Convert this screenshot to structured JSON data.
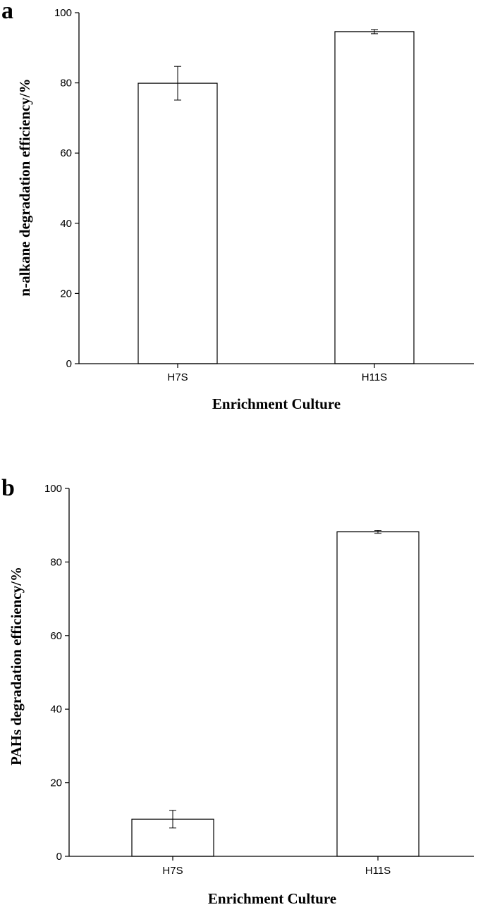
{
  "chart_data": [
    {
      "panel": "a",
      "type": "bar",
      "categories": [
        "H7S",
        "H11S"
      ],
      "values": [
        79.9,
        94.6
      ],
      "errors": [
        4.8,
        0.6
      ],
      "xlabel": "Enrichment Culture",
      "ylabel": "n-alkane degradation efficiency/%",
      "ylim": [
        0,
        100
      ],
      "yticks": [
        0,
        20,
        40,
        60,
        80,
        100
      ],
      "grid": false,
      "bar_fill": "#ffffff",
      "bar_stroke": "#000000"
    },
    {
      "panel": "b",
      "type": "bar",
      "categories": [
        "H7S",
        "H11S"
      ],
      "values": [
        10.1,
        88.2
      ],
      "errors": [
        2.4,
        0.4
      ],
      "xlabel": "Enrichment Culture",
      "ylabel": "PAHs degradation efficiency/%",
      "ylim": [
        0,
        100
      ],
      "yticks": [
        0,
        20,
        40,
        60,
        80,
        100
      ],
      "grid": false,
      "bar_fill": "#ffffff",
      "bar_stroke": "#000000"
    }
  ]
}
